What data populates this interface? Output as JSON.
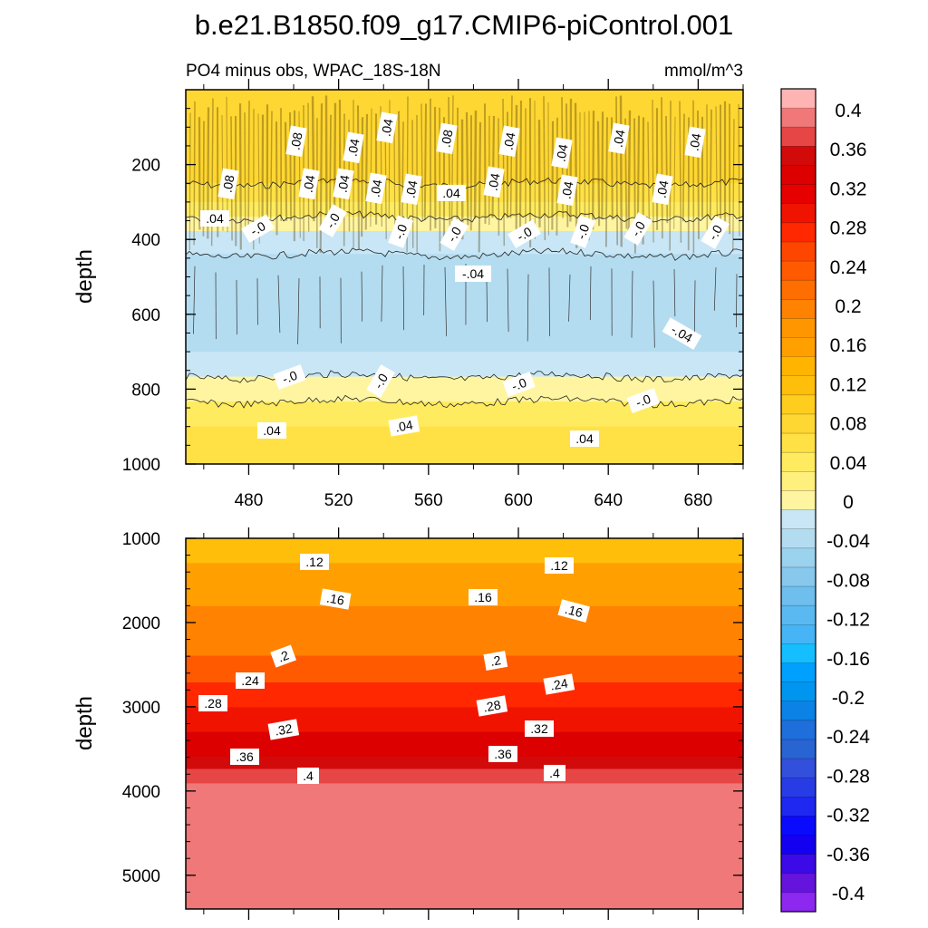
{
  "title": "b.e21.B1850.f09_g17.CMIP6-piControl.001",
  "top_panel": {
    "subtitle_left": "PO4 minus obs, WPAC_18S-18N",
    "subtitle_right": "mmol/m^3",
    "ylabel": "depth",
    "yticks": [
      "200",
      "400",
      "600",
      "800",
      "1000"
    ],
    "xticks": [
      "480",
      "520",
      "560",
      "600",
      "640",
      "680"
    ],
    "contour_labels": [
      ".08",
      ".04",
      ".04",
      ".08",
      ".04",
      ".04",
      ".04",
      ".04",
      ".08",
      ".04",
      ".04",
      ".04",
      ".04",
      ".04",
      ".04",
      ".04",
      ".04",
      ".04",
      "-.0",
      "-.0",
      "-.0",
      "-.0",
      "-.0",
      "-.0",
      "-.0",
      "-.0",
      "-.04",
      "-.04",
      "-.0",
      "-.0",
      "-.0",
      "-.0",
      ".04",
      ".04",
      ".04"
    ]
  },
  "bottom_panel": {
    "ylabel": "depth",
    "yticks": [
      "1000",
      "2000",
      "3000",
      "4000",
      "5000"
    ],
    "contour_labels": [
      ".12",
      ".12",
      ".16",
      ".16",
      ".16",
      ".2",
      ".2",
      ".24",
      ".24",
      ".28",
      ".28",
      ".32",
      ".32",
      ".36",
      ".36",
      ".4",
      ".4"
    ]
  },
  "colorbar": {
    "labels": [
      "0.4",
      "0.36",
      "0.32",
      "0.28",
      "0.24",
      "0.2",
      "0.16",
      "0.12",
      "0.08",
      "0.04",
      "0",
      "-0.04",
      "-0.08",
      "-0.12",
      "-0.16",
      "-0.2",
      "-0.24",
      "-0.28",
      "-0.32",
      "-0.36",
      "-0.4"
    ],
    "colors_top_to_bottom": [
      "#ffb4b4",
      "#f07878",
      "#e64646",
      "#d20a0a",
      "#dc0000",
      "#e60000",
      "#f01400",
      "#ff2800",
      "#ff4600",
      "#ff5a00",
      "#ff6e00",
      "#ff8200",
      "#ff9600",
      "#ffa000",
      "#ffb400",
      "#ffbe0a",
      "#ffcd1e",
      "#ffd732",
      "#ffe146",
      "#ffeb5f",
      "#fff07d",
      "#fff5a0",
      "#c8e6f5",
      "#b4dcf0",
      "#9bd2ee",
      "#87c8ec",
      "#6ebeee",
      "#5ab9f0",
      "#46b4f5",
      "#14beff",
      "#00a0ff",
      "#0096f0",
      "#0a82e6",
      "#1e6edc",
      "#2864d2",
      "#3250dc",
      "#283ce6",
      "#1e28f0",
      "#0a0aff",
      "#1400f0",
      "#3c0ae6",
      "#6414dc",
      "#8c28f0"
    ]
  },
  "chart_data": [
    {
      "type": "contour",
      "title": "PO4 minus obs, WPAC_18S-18N",
      "units": "mmol/m^3",
      "xlabel": "",
      "ylabel": "depth",
      "xlim": [
        452,
        700
      ],
      "ylim": [
        0,
        1000
      ],
      "y_inverted": true,
      "xticks": [
        480,
        520,
        560,
        600,
        640,
        680
      ],
      "yticks": [
        200,
        400,
        600,
        800,
        1000
      ],
      "depth_profile": [
        {
          "depth": 100,
          "value": 0.07
        },
        {
          "depth": 200,
          "value": 0.08
        },
        {
          "depth": 300,
          "value": 0.04
        },
        {
          "depth": 380,
          "value": 0.0
        },
        {
          "depth": 500,
          "value": -0.04
        },
        {
          "depth": 600,
          "value": -0.04
        },
        {
          "depth": 700,
          "value": -0.02
        },
        {
          "depth": 800,
          "value": 0.01
        },
        {
          "depth": 900,
          "value": 0.04
        },
        {
          "depth": 1000,
          "value": 0.06
        }
      ]
    },
    {
      "type": "contour",
      "xlabel": "",
      "ylabel": "depth",
      "xlim": [
        452,
        700
      ],
      "ylim": [
        1000,
        5400
      ],
      "y_inverted": true,
      "yticks": [
        1000,
        2000,
        3000,
        4000,
        5000
      ],
      "depth_profile": [
        {
          "depth": 1000,
          "value": 0.08
        },
        {
          "depth": 1300,
          "value": 0.12
        },
        {
          "depth": 1800,
          "value": 0.16
        },
        {
          "depth": 2400,
          "value": 0.2
        },
        {
          "depth": 2700,
          "value": 0.24
        },
        {
          "depth": 3000,
          "value": 0.28
        },
        {
          "depth": 3300,
          "value": 0.32
        },
        {
          "depth": 3600,
          "value": 0.36
        },
        {
          "depth": 3900,
          "value": 0.4
        },
        {
          "depth": 5400,
          "value": 0.42
        }
      ]
    }
  ],
  "contour_levels": [
    -0.4,
    -0.36,
    -0.32,
    -0.28,
    -0.24,
    -0.2,
    -0.16,
    -0.12,
    -0.08,
    -0.04,
    0,
    0.04,
    0.08,
    0.12,
    0.16,
    0.2,
    0.24,
    0.28,
    0.32,
    0.36,
    0.4
  ]
}
